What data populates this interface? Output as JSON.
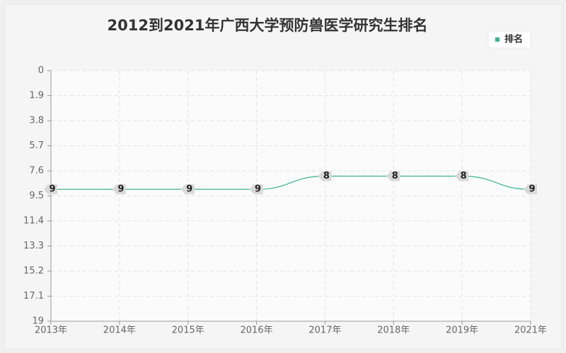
{
  "chart_data": {
    "type": "line",
    "title": "2012到2021年广西大学预防兽医学研究生排名",
    "categories": [
      "2013年",
      "2014年",
      "2015年",
      "2016年",
      "2017年",
      "2018年",
      "2019年",
      "2021年"
    ],
    "series": [
      {
        "name": "排名",
        "color": "#3cb38b",
        "values": [
          9,
          9,
          9,
          9,
          8,
          8,
          8,
          9
        ]
      }
    ],
    "ylim": [
      0,
      19
    ],
    "y_inverted": true,
    "yticks": [
      0,
      1.9,
      3.8,
      5.7,
      7.6,
      9.5,
      11.4,
      13.3,
      15.2,
      17.1,
      19
    ],
    "grid": true,
    "legend": "top-right"
  }
}
